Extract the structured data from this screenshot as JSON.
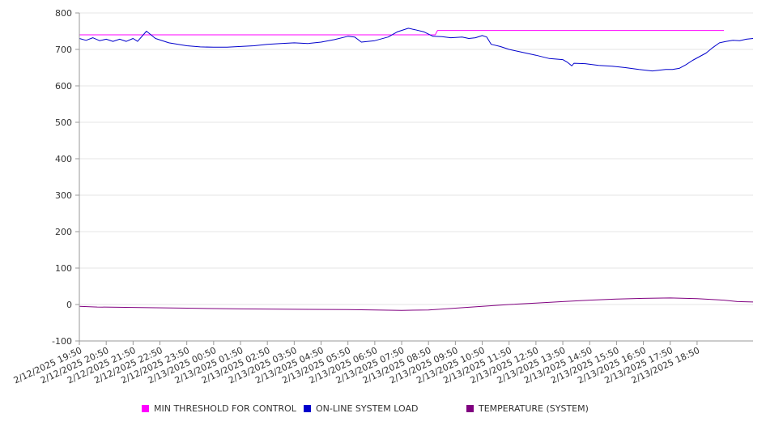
{
  "chart_data": {
    "type": "line",
    "y_ticks": [
      "800",
      "700",
      "600",
      "500",
      "400",
      "300",
      "200",
      "100",
      "0",
      "-100"
    ],
    "ylim": [
      -100,
      800
    ],
    "grid": "horizontal",
    "legend_position": "bottom",
    "x_tick_labels": [
      "2/12/2025 19:50",
      "2/12/2025 20:50",
      "2/12/2025 21:50",
      "2/12/2025 22:50",
      "2/12/2025 23:50",
      "2/13/2025 00:50",
      "2/13/2025 01:50",
      "2/13/2025 02:50",
      "2/13/2025 03:50",
      "2/13/2025 04:50",
      "2/13/2025 05:50",
      "2/13/2025 06:50",
      "2/13/2025 07:50",
      "2/13/2025 08:50",
      "2/13/2025 09:50",
      "2/13/2025 10:50",
      "2/13/2025 11:50",
      "2/13/2025 12:50",
      "2/13/2025 13:50",
      "2/13/2025 14:50",
      "2/13/2025 15:50",
      "2/13/2025 16:50",
      "2/13/2025 17:50",
      "2/13/2025 18:50"
    ],
    "series": [
      {
        "name": "MIN THRESHOLD FOR CONTROL",
        "color": "#ff00ff",
        "points": [
          [
            "2/12/2025 19:50",
            740
          ],
          [
            "2/13/2025 09:05",
            740
          ],
          [
            "2/13/2025 09:10",
            752
          ],
          [
            "2/13/2025 19:50",
            752
          ]
        ]
      },
      {
        "name": "ON-LINE SYSTEM LOAD",
        "color": "#0000cc",
        "points": [
          [
            "2/12/2025 19:50",
            730
          ],
          [
            "2/12/2025 20:05",
            725
          ],
          [
            "2/12/2025 20:20",
            732
          ],
          [
            "2/12/2025 20:35",
            724
          ],
          [
            "2/12/2025 20:50",
            728
          ],
          [
            "2/12/2025 21:05",
            722
          ],
          [
            "2/12/2025 21:20",
            728
          ],
          [
            "2/12/2025 21:35",
            722
          ],
          [
            "2/12/2025 21:50",
            730
          ],
          [
            "2/12/2025 22:00",
            722
          ],
          [
            "2/12/2025 22:20",
            750
          ],
          [
            "2/12/2025 22:40",
            730
          ],
          [
            "2/12/2025 23:10",
            718
          ],
          [
            "2/12/2025 23:50",
            710
          ],
          [
            "2/13/2025 00:20",
            707
          ],
          [
            "2/13/2025 00:50",
            706
          ],
          [
            "2/13/2025 01:20",
            706
          ],
          [
            "2/13/2025 01:50",
            708
          ],
          [
            "2/13/2025 02:20",
            710
          ],
          [
            "2/13/2025 02:50",
            714
          ],
          [
            "2/13/2025 03:20",
            716
          ],
          [
            "2/13/2025 03:50",
            718
          ],
          [
            "2/13/2025 04:20",
            716
          ],
          [
            "2/13/2025 04:50",
            720
          ],
          [
            "2/13/2025 05:20",
            727
          ],
          [
            "2/13/2025 05:50",
            736
          ],
          [
            "2/13/2025 06:05",
            734
          ],
          [
            "2/13/2025 06:20",
            720
          ],
          [
            "2/13/2025 06:50",
            724
          ],
          [
            "2/13/2025 07:20",
            734
          ],
          [
            "2/13/2025 07:40",
            748
          ],
          [
            "2/13/2025 08:05",
            758
          ],
          [
            "2/13/2025 08:20",
            754
          ],
          [
            "2/13/2025 08:40",
            748
          ],
          [
            "2/13/2025 09:00",
            736
          ],
          [
            "2/13/2025 09:20",
            735
          ],
          [
            "2/13/2025 09:40",
            732
          ],
          [
            "2/13/2025 10:05",
            734
          ],
          [
            "2/13/2025 10:20",
            730
          ],
          [
            "2/13/2025 10:35",
            732
          ],
          [
            "2/13/2025 10:50",
            738
          ],
          [
            "2/13/2025 11:00",
            734
          ],
          [
            "2/13/2025 11:10",
            714
          ],
          [
            "2/13/2025 11:30",
            708
          ],
          [
            "2/13/2025 11:50",
            700
          ],
          [
            "2/13/2025 12:20",
            692
          ],
          [
            "2/13/2025 12:50",
            684
          ],
          [
            "2/13/2025 13:20",
            675
          ],
          [
            "2/13/2025 13:50",
            672
          ],
          [
            "2/13/2025 14:00",
            665
          ],
          [
            "2/13/2025 14:10",
            655
          ],
          [
            "2/13/2025 14:15",
            662
          ],
          [
            "2/13/2025 14:40",
            661
          ],
          [
            "2/13/2025 15:10",
            656
          ],
          [
            "2/13/2025 15:40",
            654
          ],
          [
            "2/13/2025 16:10",
            650
          ],
          [
            "2/13/2025 16:40",
            645
          ],
          [
            "2/13/2025 17:10",
            641
          ],
          [
            "2/13/2025 17:40",
            645
          ],
          [
            "2/13/2025 17:55",
            645
          ],
          [
            "2/13/2025 18:10",
            648
          ],
          [
            "2/13/2025 18:25",
            658
          ],
          [
            "2/13/2025 18:40",
            670
          ],
          [
            "2/13/2025 18:55",
            680
          ],
          [
            "2/13/2025 19:10",
            690
          ],
          [
            "2/13/2025 19:25",
            705
          ],
          [
            "2/13/2025 19:40",
            718
          ],
          [
            "2/13/2025 19:55",
            722
          ],
          [
            "2/13/2025 20:10",
            725
          ],
          [
            "2/13/2025 20:25",
            724
          ],
          [
            "2/13/2025 20:40",
            728
          ],
          [
            "2/13/2025 20:55",
            730
          ]
        ]
      },
      {
        "name": "TEMPERATURE (SYSTEM)",
        "color": "#800080",
        "points": [
          [
            "2/12/2025 19:50",
            -5
          ],
          [
            "2/12/2025 20:30",
            -7
          ],
          [
            "2/12/2025 21:50",
            -8
          ],
          [
            "2/12/2025 23:50",
            -10
          ],
          [
            "2/13/2025 01:50",
            -12
          ],
          [
            "2/13/2025 03:50",
            -13
          ],
          [
            "2/13/2025 05:50",
            -14
          ],
          [
            "2/13/2025 07:50",
            -16
          ],
          [
            "2/13/2025 08:50",
            -15
          ],
          [
            "2/13/2025 09:50",
            -10
          ],
          [
            "2/13/2025 10:50",
            -5
          ],
          [
            "2/13/2025 11:50",
            0
          ],
          [
            "2/13/2025 12:50",
            4
          ],
          [
            "2/13/2025 13:50",
            8
          ],
          [
            "2/13/2025 14:50",
            12
          ],
          [
            "2/13/2025 15:50",
            15
          ],
          [
            "2/13/2025 16:50",
            17
          ],
          [
            "2/13/2025 17:50",
            18
          ],
          [
            "2/13/2025 18:50",
            16
          ],
          [
            "2/13/2025 19:50",
            12
          ],
          [
            "2/13/2025 20:20",
            8
          ],
          [
            "2/13/2025 20:55",
            7
          ]
        ]
      }
    ]
  }
}
